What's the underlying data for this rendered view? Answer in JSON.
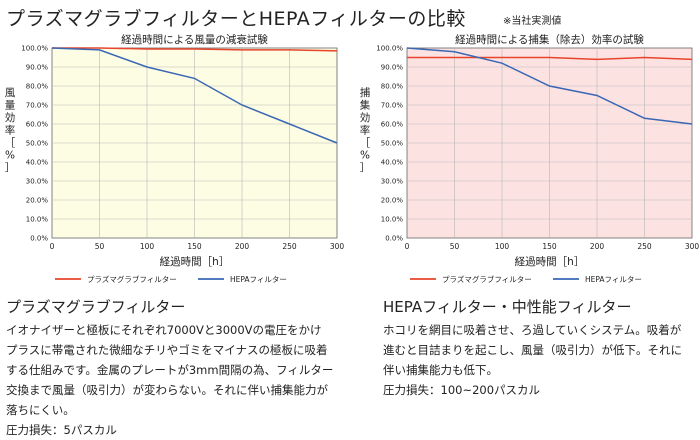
{
  "header": {
    "title": "プラズマグラブフィルターとHEPAフィルターの比較",
    "note": "※当社実測値"
  },
  "colors": {
    "plasma_line": "#e8442c",
    "hepa_line": "#3a67b4",
    "left_bg": "#fdfde4",
    "right_bg": "#fde2e2",
    "grid": "#b8b8b8"
  },
  "chart_data": [
    {
      "type": "line",
      "title": "経過時間による風量の減衰試験",
      "xlabel": "経過時間［h］",
      "ylabel": "風量効率［%］",
      "ylabel_chars": [
        "風",
        "量",
        "効",
        "率",
        "［",
        "%",
        "］"
      ],
      "x": [
        0,
        50,
        100,
        150,
        200,
        250,
        300
      ],
      "xticks": [
        "0",
        "50",
        "100",
        "150",
        "200",
        "250",
        "300"
      ],
      "ylim": [
        0,
        100
      ],
      "yticks": [
        "0.0%",
        "10.0%",
        "20.0%",
        "30.0%",
        "40.0%",
        "50.0%",
        "60.0%",
        "70.0%",
        "80.0%",
        "90.0%",
        "100.0%"
      ],
      "grid": true,
      "legend": "bottom",
      "series": [
        {
          "name": "プラズマグラブフィルター",
          "color": "#e8442c",
          "values": [
            100,
            100,
            99.5,
            99.5,
            99,
            99,
            98.5
          ]
        },
        {
          "name": "HEPAフィルター",
          "color": "#3a67b4",
          "values": [
            100,
            99,
            90,
            84,
            70,
            60,
            50
          ]
        }
      ]
    },
    {
      "type": "line",
      "title": "経過時間による捕集（除去）効率の試験",
      "xlabel": "経過時間［h］",
      "ylabel": "捕集効率［%］",
      "ylabel_chars": [
        "捕",
        "集",
        "効",
        "率",
        "［",
        "%",
        "］"
      ],
      "x": [
        0,
        50,
        100,
        150,
        200,
        250,
        300
      ],
      "xticks": [
        "0",
        "50",
        "100",
        "150",
        "200",
        "250",
        "300"
      ],
      "ylim": [
        0,
        100
      ],
      "yticks": [
        "0.0%",
        "10.0%",
        "20.0%",
        "30.0%",
        "40.0%",
        "50.0%",
        "60.0%",
        "70.0%",
        "80.0%",
        "90.0%",
        "100.0%"
      ],
      "grid": true,
      "legend": "bottom",
      "series": [
        {
          "name": "プラズマグラブフィルター",
          "color": "#e8442c",
          "values": [
            95,
            95,
            95,
            95,
            94,
            95,
            94
          ]
        },
        {
          "name": "HEPAフィルター",
          "color": "#3a67b4",
          "values": [
            100,
            98,
            92,
            80,
            75,
            63,
            60
          ]
        }
      ]
    }
  ],
  "plasma": {
    "heading": "プラズマグラブフィルター",
    "lines": [
      "イオナイザーと極板にそれぞれ7000Vと3000Vの電圧をかけ",
      "プラスに帯電された微細なチリやゴミをマイナスの極板に吸着",
      "する仕組みです。金属のプレートが3mm間隔の為、フィルター",
      "交換まで風量（吸引力）が変わらない。それに伴い捕集能力が",
      "落ちにくい。",
      "圧力損失：5パスカル"
    ]
  },
  "hepa": {
    "heading": "HEPAフィルター・中性能フィルター",
    "lines": [
      "ホコリを網目に吸着させ、ろ過していくシステム。吸着が",
      "進むと目詰まりを起こし、風量（吸引力）が低下。それに",
      "伴い捕集能力も低下。",
      "圧力損失：100~200パスカル"
    ]
  }
}
